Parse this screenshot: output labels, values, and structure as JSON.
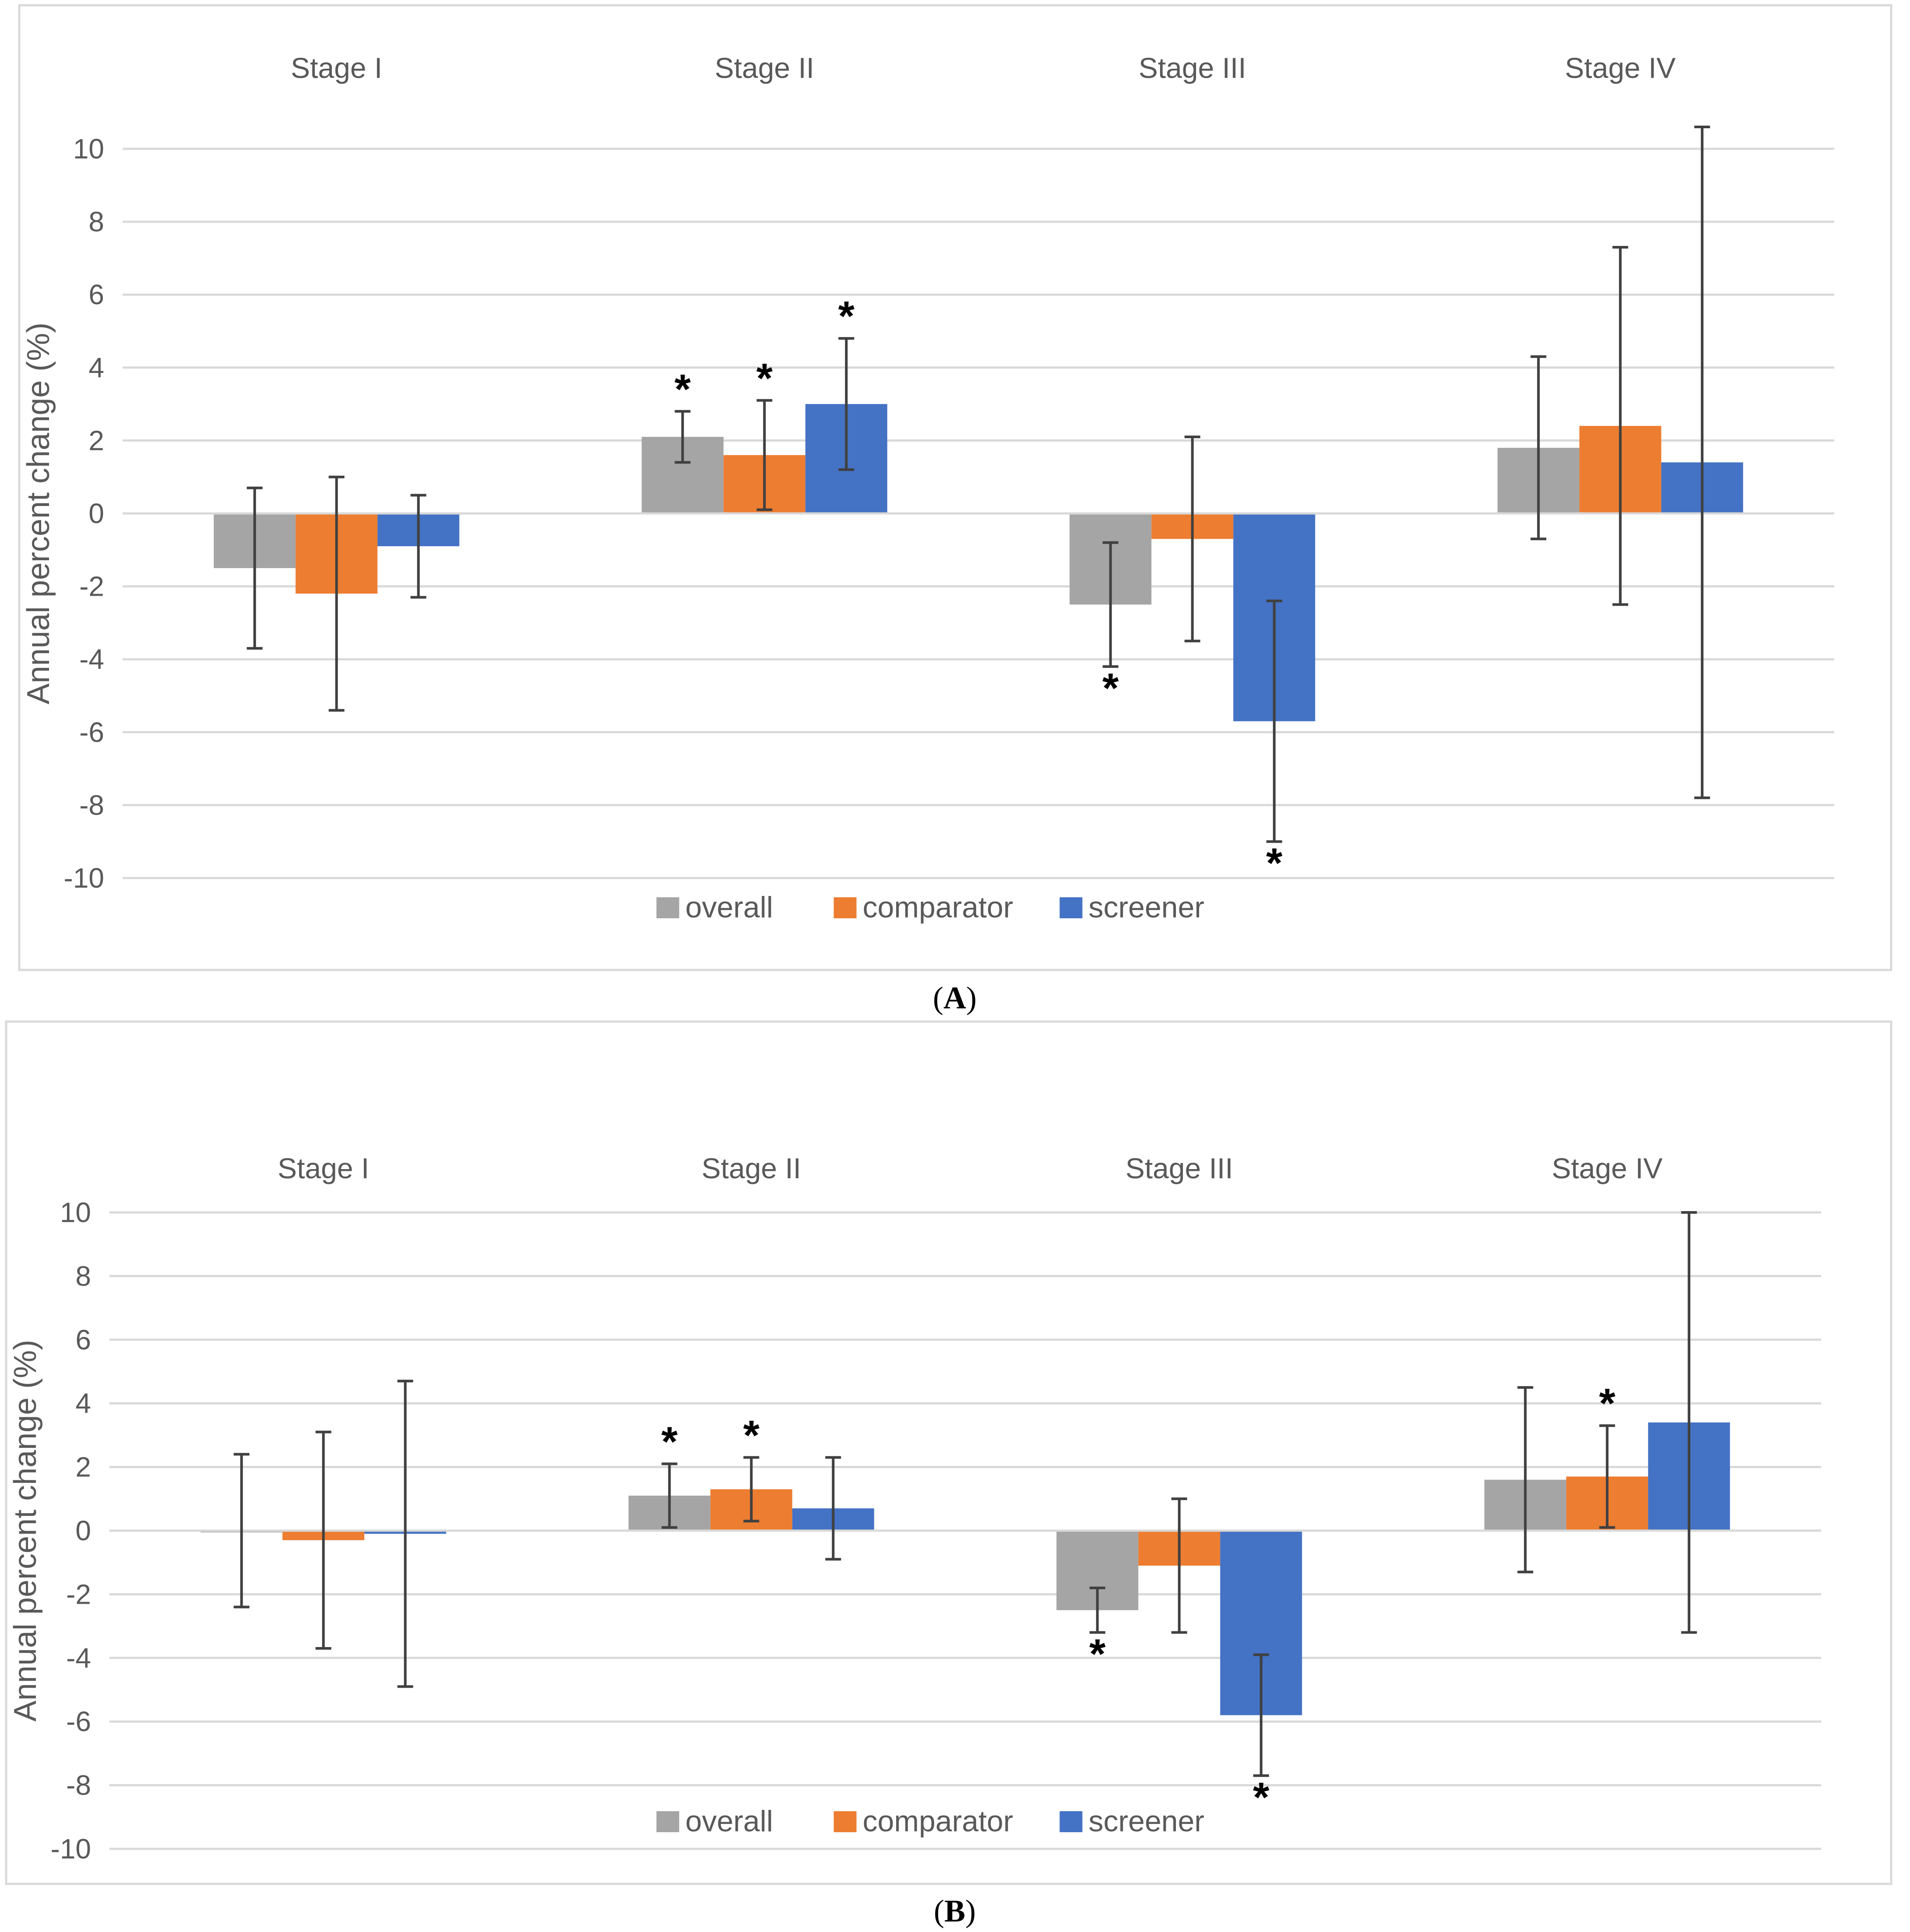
{
  "panels": [
    {
      "panel_label_open": "(",
      "panel_label_letter": "A",
      "panel_label_close": ")"
    },
    {
      "panel_label_open": "(",
      "panel_label_letter": "B",
      "panel_label_close": ")"
    }
  ],
  "colors": {
    "overall": "#A5A5A5",
    "comparator": "#ED7D31",
    "screener": "#4472C4",
    "grid": "#D9D9D9",
    "error": "#404040"
  },
  "chart_data": [
    {
      "type": "bar",
      "panel": "A",
      "title": "",
      "xlabel": "",
      "ylabel": "Annual percent change (%)",
      "ylim": [
        -10,
        10
      ],
      "yticks": [
        10,
        8,
        6,
        4,
        2,
        0,
        -2,
        -4,
        -6,
        -8,
        -10
      ],
      "categories": [
        "Stage I",
        "Stage II",
        "Stage III",
        "Stage IV"
      ],
      "legend": [
        "overall",
        "comparator",
        "screener"
      ],
      "legend_position": "bottom",
      "significance_marker": "*",
      "series": [
        {
          "name": "overall",
          "values": [
            -1.5,
            2.1,
            -2.5,
            1.8
          ],
          "ci_low": [
            -3.7,
            1.4,
            -4.2,
            -0.7
          ],
          "ci_high": [
            0.7,
            2.8,
            -0.8,
            4.3
          ],
          "significant": [
            false,
            true,
            true,
            false
          ]
        },
        {
          "name": "comparator",
          "values": [
            -2.2,
            1.6,
            -0.7,
            2.4
          ],
          "ci_low": [
            -5.4,
            0.1,
            -3.5,
            -2.5
          ],
          "ci_high": [
            1.0,
            3.1,
            2.1,
            7.3
          ],
          "significant": [
            false,
            true,
            false,
            false
          ]
        },
        {
          "name": "screener",
          "values": [
            -0.9,
            3.0,
            -5.7,
            1.4
          ],
          "ci_low": [
            -2.3,
            1.2,
            -9.0,
            -7.8
          ],
          "ci_high": [
            0.5,
            4.8,
            -2.4,
            10.6
          ],
          "significant": [
            false,
            true,
            true,
            false
          ]
        }
      ]
    },
    {
      "type": "bar",
      "panel": "B",
      "title": "",
      "xlabel": "",
      "ylabel": "Annual percent change (%)",
      "ylim": [
        -10,
        10
      ],
      "yticks": [
        10,
        8,
        6,
        4,
        2,
        0,
        -2,
        -4,
        -6,
        -8,
        -10
      ],
      "categories": [
        "Stage I",
        "Stage II",
        "Stage III",
        "Stage IV"
      ],
      "legend": [
        "overall",
        "comparator",
        "screener"
      ],
      "legend_position": "bottom",
      "significance_marker": "*",
      "series": [
        {
          "name": "overall",
          "values": [
            0.0,
            1.1,
            -2.5,
            1.6
          ],
          "ci_low": [
            -2.4,
            0.1,
            -3.2,
            -1.3
          ],
          "ci_high": [
            2.4,
            2.1,
            -1.8,
            4.5
          ],
          "significant": [
            false,
            true,
            true,
            false
          ]
        },
        {
          "name": "comparator",
          "values": [
            -0.3,
            1.3,
            -1.1,
            1.7
          ],
          "ci_low": [
            -3.7,
            0.3,
            -3.2,
            0.1
          ],
          "ci_high": [
            3.1,
            2.3,
            1.0,
            3.3
          ],
          "significant": [
            false,
            true,
            false,
            true
          ]
        },
        {
          "name": "screener",
          "values": [
            -0.1,
            0.7,
            -5.8,
            3.4
          ],
          "ci_low": [
            -4.9,
            -0.9,
            -7.7,
            -3.2
          ],
          "ci_high": [
            4.7,
            2.3,
            -3.9,
            10.0
          ],
          "significant": [
            false,
            false,
            true,
            false
          ]
        }
      ]
    }
  ]
}
